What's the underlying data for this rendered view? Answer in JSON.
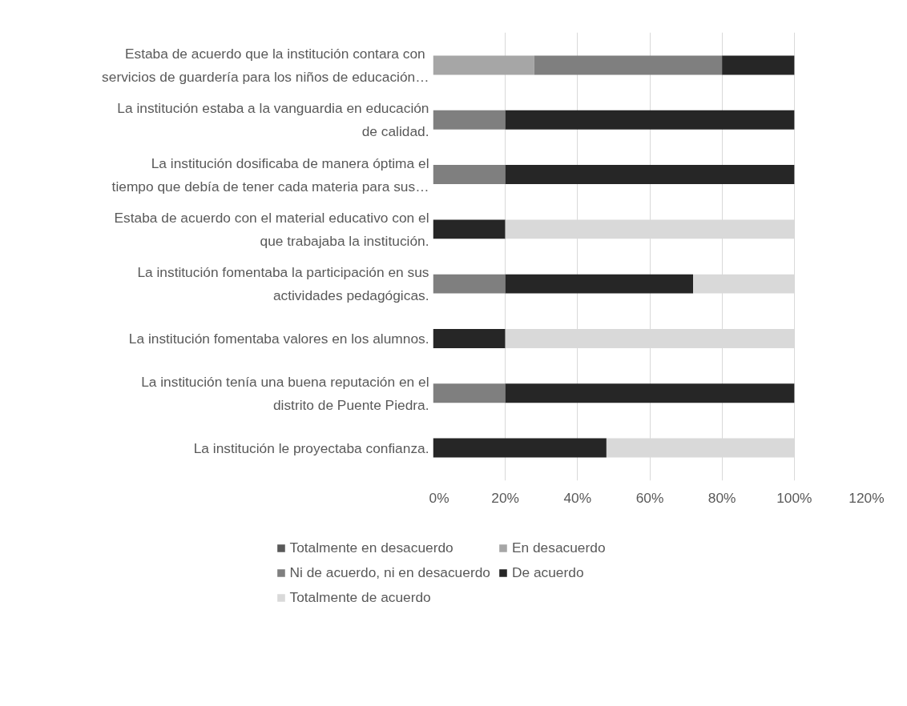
{
  "chart_data": {
    "type": "bar",
    "orientation": "horizontal",
    "stacked": true,
    "categories": [
      "Estaba de acuerdo que la  institución contara con\nservicios de guardería para los niños de educación…",
      "La institución estaba a la vanguardia en educación\nde calidad.",
      "La institución dosificaba de manera óptima el\ntiempo que debía de tener cada materia para sus…",
      "Estaba de acuerdo con el material educativo con el\nque trabajaba la institución.",
      "La institución fomentaba la participación en sus\nactividades pedagógicas.",
      "La institución fomentaba valores en los alumnos.",
      "La institución tenía una buena reputación en el\ndistrito de Puente Piedra.",
      "La institución le proyectaba confianza."
    ],
    "series": [
      {
        "name": "Totalmente en desacuerdo",
        "color": "#595959",
        "values": [
          0,
          0,
          0,
          0,
          0,
          0,
          0,
          0
        ]
      },
      {
        "name": "En desacuerdo",
        "color": "#a6a6a6",
        "values": [
          28,
          0,
          0,
          0,
          0,
          0,
          0,
          0
        ]
      },
      {
        "name": "Ni de acuerdo, ni en desacuerdo",
        "color": "#7f7f7f",
        "values": [
          52,
          20,
          20,
          0,
          20,
          0,
          20,
          0
        ]
      },
      {
        "name": "De acuerdo",
        "color": "#262626",
        "values": [
          20,
          80,
          80,
          20,
          52,
          20,
          80,
          48
        ]
      },
      {
        "name": "Totalmente de acuerdo",
        "color": "#d9d9d9",
        "values": [
          0,
          0,
          0,
          80,
          28,
          80,
          0,
          52
        ]
      }
    ],
    "xlim": [
      0,
      120
    ],
    "xticks": [
      {
        "value": 0,
        "label": "0%"
      },
      {
        "value": 20,
        "label": "20%"
      },
      {
        "value": 40,
        "label": "40%"
      },
      {
        "value": 60,
        "label": "60%"
      },
      {
        "value": 80,
        "label": "80%"
      },
      {
        "value": 100,
        "label": "100%"
      },
      {
        "value": 120,
        "label": "120%"
      }
    ],
    "grid": "x",
    "legend": "bottom"
  }
}
